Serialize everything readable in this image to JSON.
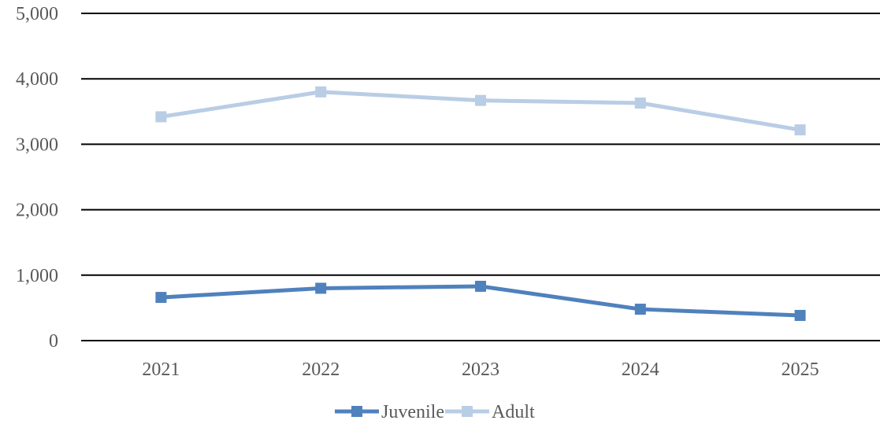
{
  "chart_data": {
    "type": "line",
    "title": "",
    "xlabel": "",
    "ylabel": "",
    "categories": [
      "2021",
      "2022",
      "2023",
      "2024",
      "2025"
    ],
    "ylim": [
      0,
      5000
    ],
    "yticks": [
      0,
      1000,
      2000,
      3000,
      4000,
      5000
    ],
    "ytick_labels": [
      "0",
      "1,000",
      "2,000",
      "3,000",
      "4,000",
      "5,000"
    ],
    "grid": true,
    "legend_position": "bottom",
    "series": [
      {
        "name": "Juvenile",
        "color": "#4f81bd",
        "marker": "square",
        "values": [
          660,
          800,
          830,
          480,
          385
        ]
      },
      {
        "name": "Adult",
        "color": "#b9cde5",
        "marker": "square",
        "values": [
          3420,
          3800,
          3670,
          3630,
          3220
        ]
      }
    ]
  }
}
